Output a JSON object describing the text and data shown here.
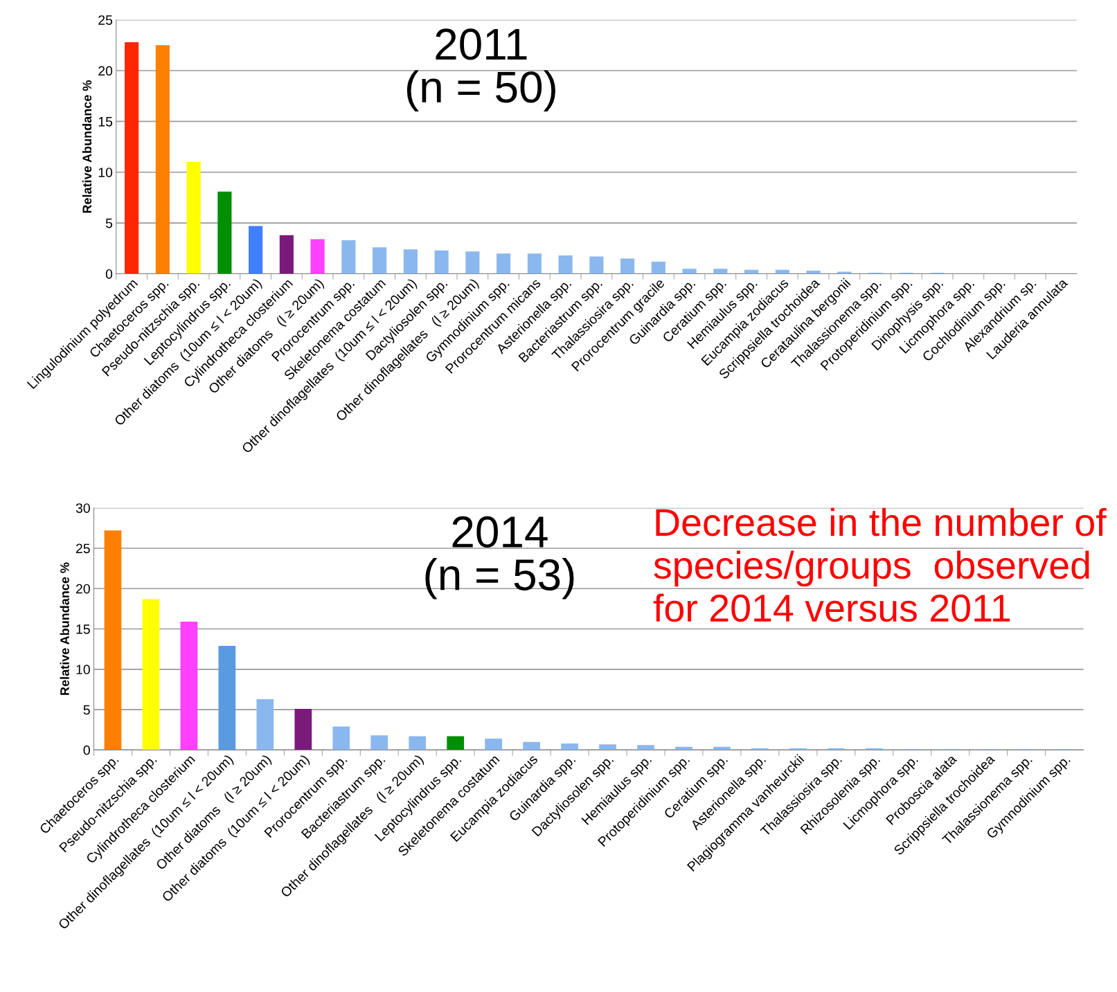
{
  "chart_data": [
    {
      "type": "bar",
      "title": "2011\n(n = 50)",
      "ylabel": "Relative Abundance %",
      "ylim": [
        0,
        25
      ],
      "yticks": [
        0,
        5,
        10,
        15,
        20,
        25
      ],
      "grid": "y",
      "categories": [
        "Lingulodinium polyedrum",
        "Chaetoceros spp.",
        "Pseudo-nitzschia spp.",
        "Leptocylindrus spp.",
        "Other diatoms  (10um ≤ l < 20um)",
        "Cylindrotheca closterium",
        "Other diatoms   (l ≥ 20um)",
        "Prorocentrum spp.",
        "Skeletonema costatum",
        "Other dinoflagellates  (10um ≤ l < 20um)",
        "Dactyliosolen spp.",
        "Other dinoflagellates   (l ≥ 20um)",
        "Gymnodinium spp.",
        "Prorocentrum micans",
        "Asterionella spp.",
        "Bacteriastrum spp.",
        "Thalassiosira spp.",
        "Prorocentrum gracile",
        "Guinardia spp.",
        "Ceratium spp.",
        "Hemiaulus spp.",
        "Eucampia zodiacus",
        "Scrippsiella trochoidea",
        "Cerataulina bergonii",
        "Thalassionema spp.",
        "Protoperidinium spp.",
        "Dinophysis spp.",
        "Licmophora spp.",
        "Cochlodinium spp.",
        "Alexandrium sp.",
        "Lauderia annulata"
      ],
      "values": [
        22.8,
        22.5,
        11.0,
        8.1,
        4.7,
        3.8,
        3.4,
        3.3,
        2.6,
        2.4,
        2.3,
        2.2,
        2.0,
        2.0,
        1.8,
        1.7,
        1.5,
        1.2,
        0.5,
        0.5,
        0.4,
        0.4,
        0.3,
        0.2,
        0.1,
        0.1,
        0.1,
        null,
        null,
        null,
        null
      ],
      "colors": [
        "#ff2600",
        "#ff8000",
        "#ffff00",
        "#008f00",
        "#4080ff",
        "#7a1a7a",
        "#ff40ff",
        "#8ab8ee",
        "#8ab8ee",
        "#8ab8ee",
        "#8ab8ee",
        "#8ab8ee",
        "#8ab8ee",
        "#8ab8ee",
        "#8ab8ee",
        "#8ab8ee",
        "#8ab8ee",
        "#8ab8ee",
        "#8ab8ee",
        "#8ab8ee",
        "#8ab8ee",
        "#8ab8ee",
        "#8ab8ee",
        "#8ab8ee",
        "#8ab8ee",
        "#8ab8ee",
        "#8ab8ee",
        "#8ab8ee",
        "#8ab8ee",
        "#8ab8ee",
        "#8ab8ee"
      ]
    },
    {
      "type": "bar",
      "title": "2014\n(n = 53)",
      "ylabel": "Relative Abundance %",
      "ylim": [
        0,
        30
      ],
      "yticks": [
        0,
        5,
        10,
        15,
        20,
        25,
        30
      ],
      "grid": "y",
      "annotations": [
        "Decrease in the number of\nspecies/groups  observed\nfor 2014 versus 2011"
      ],
      "categories": [
        "Chaetoceros spp.",
        "Pseudo-nitzschia spp.",
        "Cylindrotheca closterium",
        "Other dinoflagellates  (10um ≤ l < 20um)",
        "Other diatoms   (l ≥ 20um)",
        "Other diatoms  (10um ≤ l < 20um)",
        "Prorocentrum spp.",
        "Bacteriastrum spp.",
        "Other dinoflagellates   (l ≥ 20um)",
        "Leptocylindrus spp.",
        "Skeletonema costatum",
        "Eucampia zodiacus",
        "Guinardia spp.",
        "Dactyliosolen spp.",
        "Hemiaulus spp.",
        "Protoperidinium spp.",
        "Ceratium spp.",
        "Asterionella spp.",
        "Plagiogramma vanheurckii",
        "Thalassiosira spp.",
        "Rhizosolenia spp.",
        "Licmophora spp.",
        "Proboscia alata",
        "Scrippsiella trochoidea",
        "Thalassionema spp.",
        "Gymnodinium spp."
      ],
      "values": [
        27.2,
        18.7,
        15.9,
        12.9,
        6.3,
        5.1,
        2.9,
        1.8,
        1.7,
        1.7,
        1.4,
        1.0,
        0.8,
        0.7,
        0.6,
        0.4,
        0.4,
        0.2,
        0.2,
        0.2,
        0.2,
        0.1,
        0.1,
        0.1,
        0.1,
        0.1
      ],
      "colors": [
        "#ff8000",
        "#ffff00",
        "#ff40ff",
        "#5a9ae0",
        "#8ab8ee",
        "#7a1a7a",
        "#8ab8ee",
        "#8ab8ee",
        "#8ab8ee",
        "#008f00",
        "#8ab8ee",
        "#8ab8ee",
        "#8ab8ee",
        "#8ab8ee",
        "#8ab8ee",
        "#8ab8ee",
        "#8ab8ee",
        "#8ab8ee",
        "#8ab8ee",
        "#8ab8ee",
        "#8ab8ee",
        "#8ab8ee",
        "#8ab8ee",
        "#8ab8ee",
        "#8ab8ee",
        "#8ab8ee"
      ]
    }
  ]
}
